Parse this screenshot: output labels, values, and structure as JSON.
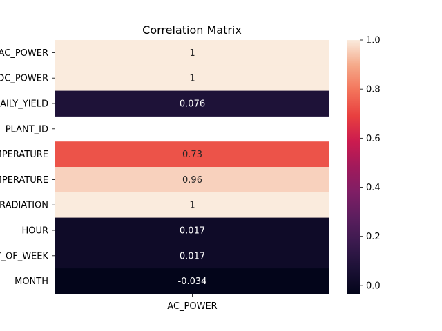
{
  "chart_data": {
    "type": "heatmap",
    "title": "Correlation Matrix",
    "x_categories": [
      "AC_POWER"
    ],
    "y_categories": [
      "AC_POWER",
      "DC_POWER",
      "DAILY_YIELD",
      "PLANT_ID",
      "AMBIENT_TEMPERATURE",
      "MODULE_TEMPERATURE",
      "IRRADIATION",
      "HOUR",
      "DAY_OF_WEEK",
      "MONTH"
    ],
    "values": [
      1.0,
      1.0,
      0.076,
      null,
      0.73,
      0.96,
      1.0,
      0.017,
      0.017,
      -0.034
    ],
    "annotations": [
      "1",
      "1",
      "0.076",
      "",
      "0.73",
      "0.96",
      "1",
      "0.017",
      "0.017",
      "-0.034"
    ],
    "colorbar": {
      "range": [
        -0.034,
        1.0
      ],
      "ticks": [
        0.0,
        0.2,
        0.4,
        0.6,
        0.8,
        1.0
      ],
      "tick_labels": [
        "0.0",
        "0.2",
        "0.4",
        "0.6",
        "0.8",
        "1.0"
      ]
    },
    "colormap": "rocket"
  }
}
